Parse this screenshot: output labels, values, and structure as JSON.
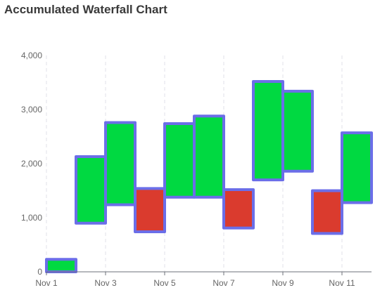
{
  "chart_data": {
    "type": "bar",
    "title": "Accumulated Waterfall Chart",
    "xlabel": "",
    "ylabel": "",
    "ylim": [
      0,
      4000
    ],
    "y_ticks": [
      0,
      1000,
      2000,
      3000,
      4000
    ],
    "y_tick_labels": [
      "0",
      "1,000",
      "2,000",
      "3,000",
      "4,000"
    ],
    "x_tick_labels": [
      "Nov 1",
      "Nov 3",
      "Nov 5",
      "Nov 7",
      "Nov 9",
      "Nov 11"
    ],
    "x_tick_every": 2,
    "categories": [
      "Nov 1",
      "Nov 2",
      "Nov 3",
      "Nov 4",
      "Nov 5",
      "Nov 6",
      "Nov 7",
      "Nov 8",
      "Nov 9",
      "Nov 10",
      "Nov 11"
    ],
    "bars": [
      {
        "category": "Nov 1",
        "start": 0,
        "end": 230,
        "direction": "up"
      },
      {
        "category": "Nov 2",
        "start": 900,
        "end": 2130,
        "direction": "up"
      },
      {
        "category": "Nov 3",
        "start": 1240,
        "end": 2760,
        "direction": "up"
      },
      {
        "category": "Nov 4",
        "start": 740,
        "end": 1540,
        "direction": "down"
      },
      {
        "category": "Nov 5",
        "start": 1380,
        "end": 2740,
        "direction": "up"
      },
      {
        "category": "Nov 6",
        "start": 1380,
        "end": 2880,
        "direction": "up"
      },
      {
        "category": "Nov 7",
        "start": 810,
        "end": 1520,
        "direction": "down"
      },
      {
        "category": "Nov 8",
        "start": 1700,
        "end": 3520,
        "direction": "up"
      },
      {
        "category": "Nov 9",
        "start": 1860,
        "end": 3340,
        "direction": "up"
      },
      {
        "category": "Nov 10",
        "start": 710,
        "end": 1500,
        "direction": "down"
      },
      {
        "category": "Nov 11",
        "start": 1280,
        "end": 2570,
        "direction": "up"
      }
    ],
    "colors": {
      "increase": "#00d941",
      "decrease": "#da3b2e",
      "outline": "#6b6ee8",
      "grid": "#e0e0ea",
      "axis": "#6e7079",
      "tick_text": "#666666"
    },
    "grid": true,
    "legend": "none"
  }
}
